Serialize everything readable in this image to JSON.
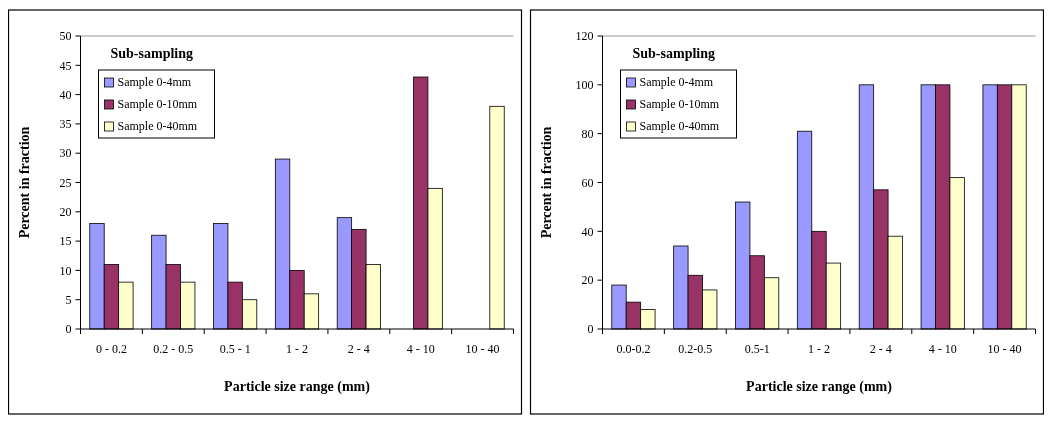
{
  "chart_data": [
    {
      "type": "bar",
      "xlabel": "Particle size range (mm)",
      "ylabel": "Percent in fraction",
      "legend_title": "Sub-sampling",
      "legend": "top left",
      "categories": [
        "0 - 0.2",
        "0.2 - 0.5",
        "0.5 - 1",
        "1 - 2",
        "2 - 4",
        "4 - 10",
        "10 - 40"
      ],
      "ylim": [
        0,
        50
      ],
      "yticks": [
        0,
        5,
        10,
        15,
        20,
        25,
        30,
        35,
        40,
        45,
        50
      ],
      "series": [
        {
          "name": "Sample 0-4mm",
          "color": "#9999ff",
          "values": [
            18,
            16,
            18,
            29,
            19,
            null,
            null
          ]
        },
        {
          "name": "Sample 0-10mm",
          "color": "#993366",
          "values": [
            11,
            11,
            8,
            10,
            17,
            43,
            null
          ]
        },
        {
          "name": "Sample 0-40mm",
          "color": "#ffffcc",
          "values": [
            8,
            8,
            5,
            6,
            11,
            24,
            38
          ]
        }
      ]
    },
    {
      "type": "bar",
      "xlabel": "Particle size range (mm)",
      "ylabel": "Percent in fraction",
      "legend_title": "Sub-sampling",
      "legend": "top left",
      "categories": [
        "0.0-0.2",
        "0.2-0.5",
        "0.5-1",
        "1 - 2",
        "2 - 4",
        "4 - 10",
        "10 - 40"
      ],
      "ylim": [
        0,
        120
      ],
      "yticks": [
        0,
        20,
        40,
        60,
        80,
        100,
        120
      ],
      "series": [
        {
          "name": "Sample 0-4mm",
          "color": "#9999ff",
          "values": [
            18,
            34,
            52,
            81,
            100,
            100,
            100
          ]
        },
        {
          "name": "Sample 0-10mm",
          "color": "#993366",
          "values": [
            11,
            22,
            30,
            40,
            57,
            100,
            100
          ]
        },
        {
          "name": "Sample 0-40mm",
          "color": "#ffffcc",
          "values": [
            8,
            16,
            21,
            27,
            38,
            62,
            100
          ]
        }
      ]
    }
  ]
}
